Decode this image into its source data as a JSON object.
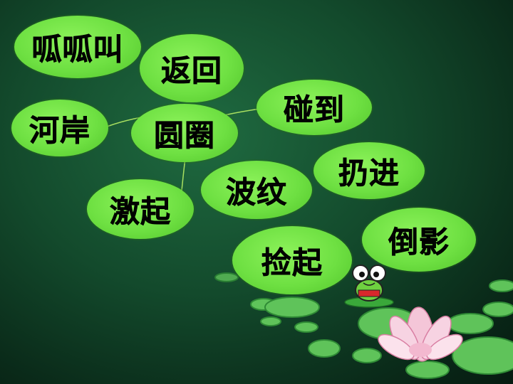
{
  "words": [
    {
      "id": "guagua",
      "text": "呱呱叫"
    },
    {
      "id": "fanhui",
      "text": "返回"
    },
    {
      "id": "hean",
      "text": "河岸"
    },
    {
      "id": "yuanquan",
      "text": "圆圈"
    },
    {
      "id": "pengdao",
      "text": "碰到"
    },
    {
      "id": "rengjin",
      "text": "扔进"
    },
    {
      "id": "jiqi",
      "text": "激起"
    },
    {
      "id": "bowen",
      "text": "波纹"
    },
    {
      "id": "daoying",
      "text": "倒影"
    },
    {
      "id": "jianqi",
      "text": "捡起"
    }
  ],
  "colors": {
    "bubble": "#6ee042",
    "background": "#134a2c",
    "stem": "#a8e060"
  }
}
